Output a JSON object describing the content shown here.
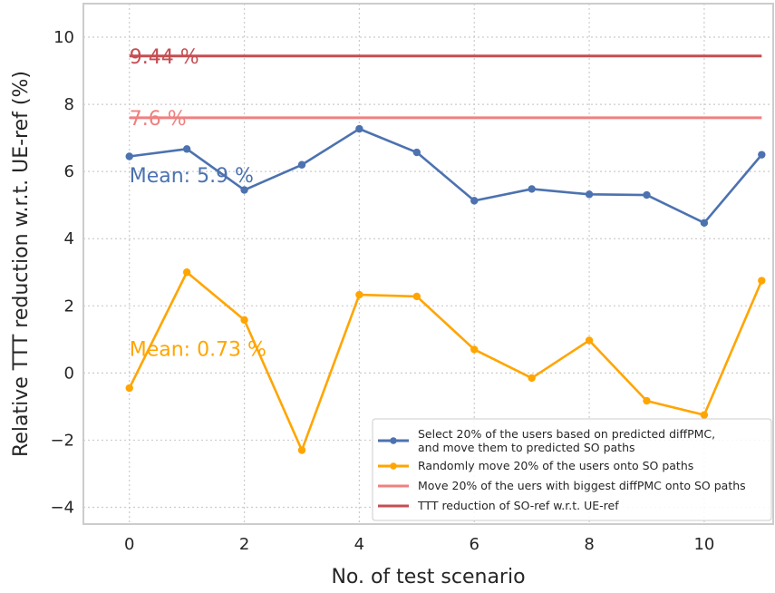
{
  "chart_data": {
    "type": "line",
    "xlabel": "No. of test scenario",
    "ylabel": "Relative TTT reduction w.r.t. UE-ref (%)",
    "xlim": [
      -0.8,
      11.2
    ],
    "ylim": [
      -4.5,
      11
    ],
    "xticks": [
      0,
      2,
      4,
      6,
      8,
      10
    ],
    "yticks": [
      -4,
      -2,
      0,
      2,
      4,
      6,
      8,
      10
    ],
    "grid": true,
    "legend_position": "lower-right",
    "series": [
      {
        "id": "predicted",
        "name": "Select 20% of the users based on predicted diffPMC,\nand move them to predicted SO paths",
        "color": "#4c72b0",
        "style": "line-marker",
        "x": [
          0,
          1,
          2,
          3,
          4,
          5,
          6,
          7,
          8,
          9,
          10,
          11
        ],
        "y": [
          6.45,
          6.67,
          5.45,
          6.2,
          7.27,
          6.57,
          5.13,
          5.48,
          5.32,
          5.3,
          4.47,
          6.5
        ]
      },
      {
        "id": "random",
        "name": "Randomly move 20% of the users onto SO paths",
        "color": "#ffa500",
        "style": "line-marker",
        "x": [
          0,
          1,
          2,
          3,
          4,
          5,
          6,
          7,
          8,
          9,
          10,
          11
        ],
        "y": [
          -0.45,
          3.0,
          1.58,
          -2.3,
          2.33,
          2.28,
          0.7,
          -0.15,
          0.97,
          -0.83,
          -1.25,
          2.75
        ]
      },
      {
        "id": "biggest",
        "name": "Move 20% of the uers with biggest diffPMC onto SO paths",
        "color": "#f08080",
        "style": "hline",
        "x": [
          0,
          11
        ],
        "y": [
          7.6,
          7.6
        ]
      },
      {
        "id": "soref",
        "name": "TTT reduction of SO-ref w.r.t. UE-ref",
        "color": "#c44e52",
        "style": "hline",
        "x": [
          0,
          11
        ],
        "y": [
          9.44,
          9.44
        ]
      }
    ],
    "annotations": [
      {
        "text": "9.44 %",
        "x": 0,
        "y": 9.44,
        "color": "#c44e52"
      },
      {
        "text": "7.6 %",
        "x": 0,
        "y": 7.6,
        "color": "#f08080"
      },
      {
        "text": "Mean: 5.9 %",
        "x": 0,
        "y": 5.9,
        "color": "#4c72b0"
      },
      {
        "text": "Mean: 0.73 %",
        "x": 0,
        "y": 0.73,
        "color": "#ffa500"
      }
    ]
  }
}
